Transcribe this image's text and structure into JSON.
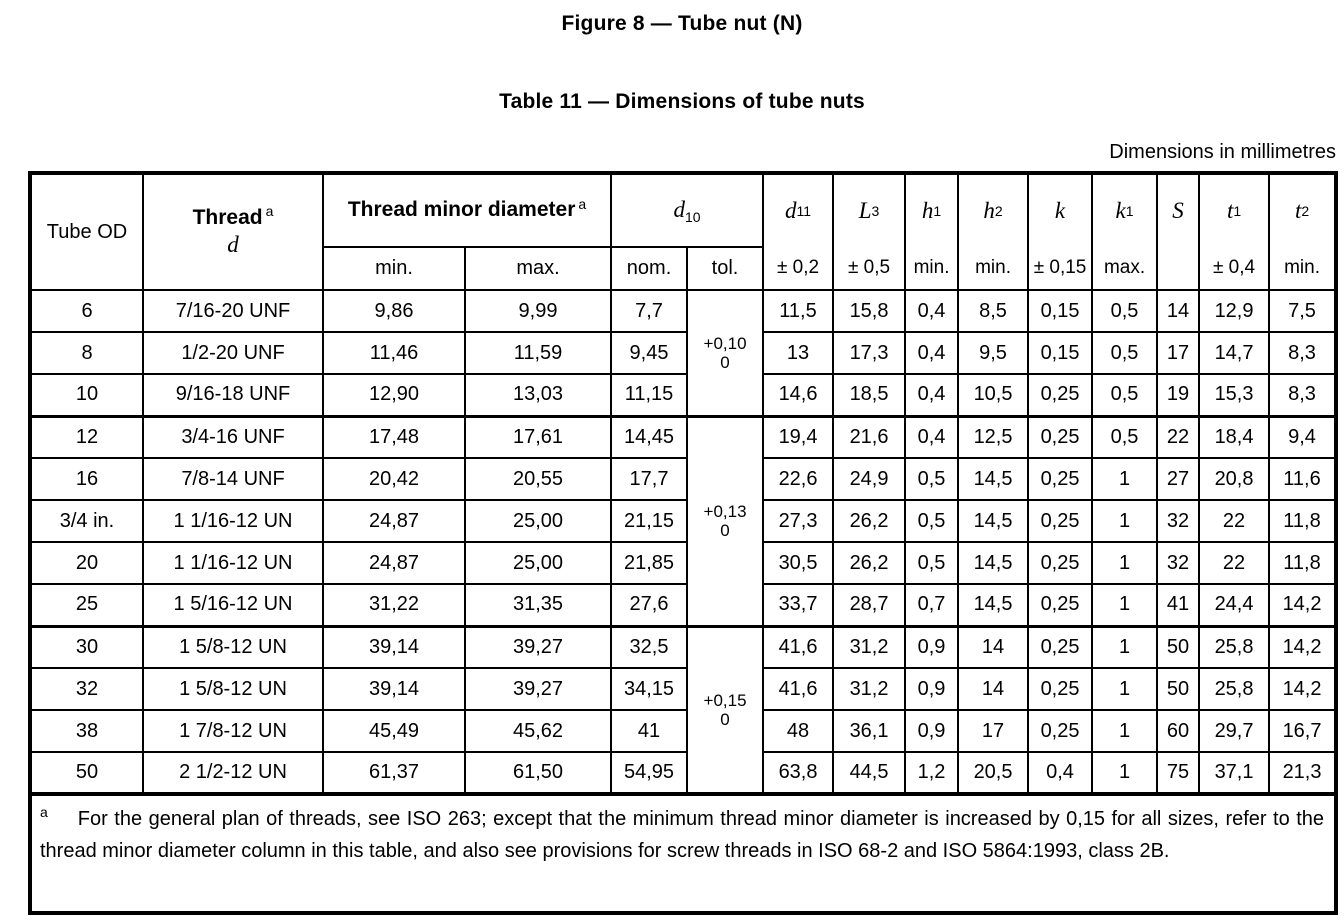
{
  "page": {
    "figure_caption": "Figure 8 — Tube nut (N)",
    "table_caption": "Table 11 — Dimensions of tube nuts",
    "units_note": "Dimensions in millimetres"
  },
  "table": {
    "header": {
      "tube_od": "Tube OD",
      "thread_label": "Thread",
      "thread_sup": "a",
      "thread_symbol": "d",
      "tmd_label": "Thread minor diameter",
      "tmd_sup": "a",
      "tmd_sub": [
        "min.",
        "max."
      ],
      "d10": {
        "base": "d",
        "sub": "10"
      },
      "d10_sub": [
        "nom.",
        "tol."
      ],
      "symbol_columns": [
        {
          "base": "d",
          "sub": "11",
          "label": "± 0,2"
        },
        {
          "base": "L",
          "sub": "3",
          "label": "± 0,5"
        },
        {
          "base": "h",
          "sub": "1",
          "label": "min."
        },
        {
          "base": "h",
          "sub": "2",
          "label": "min."
        },
        {
          "base": "k",
          "sub": "",
          "label": "± 0,15"
        },
        {
          "base": "k",
          "sub": "1",
          "label": "max."
        },
        {
          "base": "S",
          "sub": "",
          "label": ""
        },
        {
          "base": "t",
          "sub": "1",
          "label": "± 0,4"
        },
        {
          "base": "t",
          "sub": "2",
          "label": "min."
        }
      ]
    },
    "tolerance_groups": [
      {
        "rows": 3,
        "plus": "+0,10",
        "minus": "0"
      },
      {
        "rows": 5,
        "plus": "+0,13",
        "minus": "0"
      },
      {
        "rows": 4,
        "plus": "+0,15",
        "minus": "0"
      }
    ],
    "rows": [
      [
        "6",
        "7/16-20 UNF",
        "9,86",
        "9,99",
        "7,7",
        "11,5",
        "15,8",
        "0,4",
        "8,5",
        "0,15",
        "0,5",
        "14",
        "12,9",
        "7,5"
      ],
      [
        "8",
        "1/2-20 UNF",
        "11,46",
        "11,59",
        "9,45",
        "13",
        "17,3",
        "0,4",
        "9,5",
        "0,15",
        "0,5",
        "17",
        "14,7",
        "8,3"
      ],
      [
        "10",
        "9/16-18 UNF",
        "12,90",
        "13,03",
        "11,15",
        "14,6",
        "18,5",
        "0,4",
        "10,5",
        "0,25",
        "0,5",
        "19",
        "15,3",
        "8,3"
      ],
      [
        "12",
        "3/4-16 UNF",
        "17,48",
        "17,61",
        "14,45",
        "19,4",
        "21,6",
        "0,4",
        "12,5",
        "0,25",
        "0,5",
        "22",
        "18,4",
        "9,4"
      ],
      [
        "16",
        "7/8-14 UNF",
        "20,42",
        "20,55",
        "17,7",
        "22,6",
        "24,9",
        "0,5",
        "14,5",
        "0,25",
        "1",
        "27",
        "20,8",
        "11,6"
      ],
      [
        "3/4 in.",
        "1 1/16-12 UN",
        "24,87",
        "25,00",
        "21,15",
        "27,3",
        "26,2",
        "0,5",
        "14,5",
        "0,25",
        "1",
        "32",
        "22",
        "11,8"
      ],
      [
        "20",
        "1 1/16-12 UN",
        "24,87",
        "25,00",
        "21,85",
        "30,5",
        "26,2",
        "0,5",
        "14,5",
        "0,25",
        "1",
        "32",
        "22",
        "11,8"
      ],
      [
        "25",
        "1 5/16-12 UN",
        "31,22",
        "31,35",
        "27,6",
        "33,7",
        "28,7",
        "0,7",
        "14,5",
        "0,25",
        "1",
        "41",
        "24,4",
        "14,2"
      ],
      [
        "30",
        "1 5/8-12 UN",
        "39,14",
        "39,27",
        "32,5",
        "41,6",
        "31,2",
        "0,9",
        "14",
        "0,25",
        "1",
        "50",
        "25,8",
        "14,2"
      ],
      [
        "32",
        "1 5/8-12 UN",
        "39,14",
        "39,27",
        "34,15",
        "41,6",
        "31,2",
        "0,9",
        "14",
        "0,25",
        "1",
        "50",
        "25,8",
        "14,2"
      ],
      [
        "38",
        "1 7/8-12 UN",
        "45,49",
        "45,62",
        "41",
        "48",
        "36,1",
        "0,9",
        "17",
        "0,25",
        "1",
        "60",
        "29,7",
        "16,7"
      ],
      [
        "50",
        "2 1/2-12 UN",
        "61,37",
        "61,50",
        "54,95",
        "63,8",
        "44,5",
        "1,2",
        "20,5",
        "0,4",
        "1",
        "75",
        "37,1",
        "21,3"
      ]
    ],
    "footnote": {
      "marker": "a",
      "text": "For the general plan of threads, see ISO 263; except that the minimum thread minor diameter is increased by 0,15 for all sizes, refer to the thread minor diameter column in this table, and also see provisions for screw threads in ISO 68-2 and ISO 5864:1993, class 2B."
    }
  }
}
